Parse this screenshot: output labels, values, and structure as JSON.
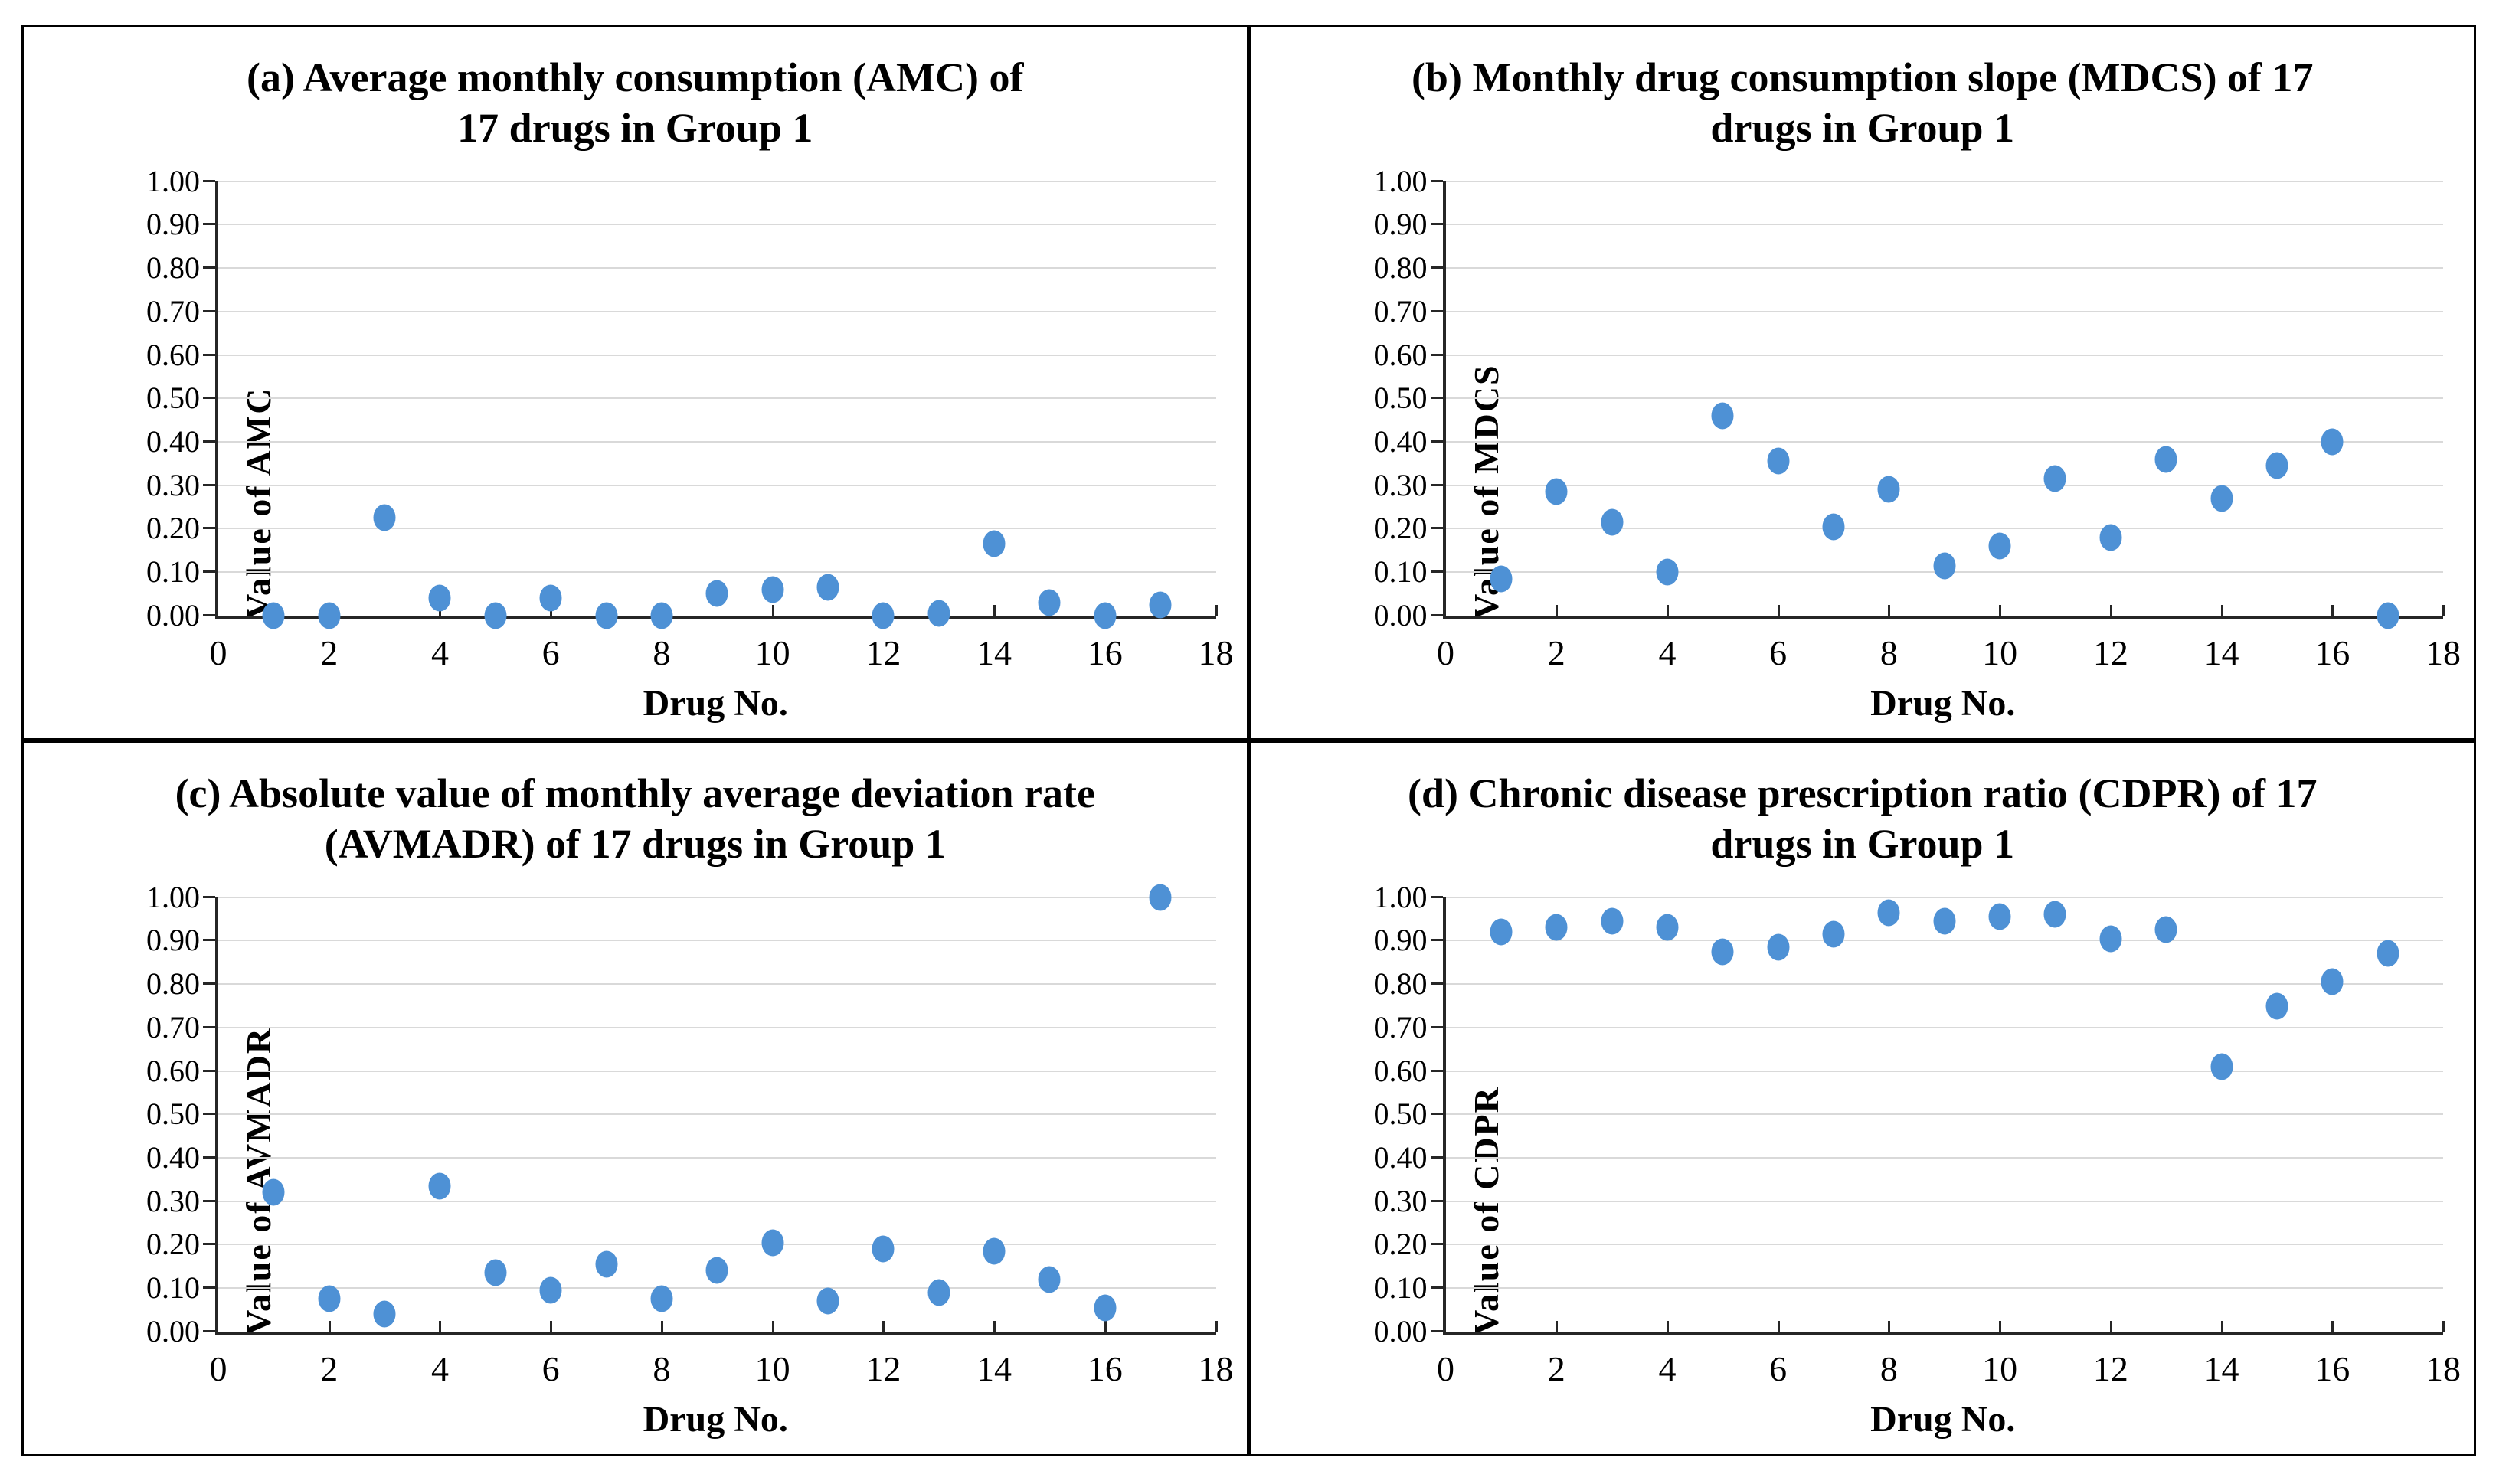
{
  "styles": {
    "marker_color": "#4e91d5",
    "gridline_color": "#d9d9d9",
    "axis_color": "#262626",
    "panel_border_color": "#000000"
  },
  "chart_data": [
    {
      "type": "scatter",
      "panel": "a",
      "title_lines": [
        "(a) Average monthly consumption (AMC) of",
        "17 drugs in Group 1"
      ],
      "ylabel": "Value of AMC",
      "xlabel": "Drug No.",
      "xlim": [
        0,
        18
      ],
      "ylim": [
        0,
        1
      ],
      "xticks": [
        "0",
        "2",
        "4",
        "6",
        "8",
        "10",
        "12",
        "14",
        "16",
        "18"
      ],
      "yticks": [
        "0.00",
        "0.10",
        "0.20",
        "0.30",
        "0.40",
        "0.50",
        "0.60",
        "0.70",
        "0.80",
        "0.90",
        "1.00"
      ],
      "grid": "horizontal",
      "legend": "none",
      "x": [
        1,
        2,
        3,
        4,
        5,
        6,
        7,
        8,
        9,
        10,
        11,
        12,
        13,
        14,
        15,
        16,
        17
      ],
      "values": [
        0.0,
        0.0,
        0.225,
        0.04,
        0.0,
        0.04,
        0.0,
        0.0,
        0.05,
        0.06,
        0.065,
        0.0,
        0.005,
        0.165,
        0.03,
        0.0,
        0.025
      ]
    },
    {
      "type": "scatter",
      "panel": "b",
      "title_lines": [
        "(b) Monthly drug consumption slope (MDCS) of 17",
        "drugs in Group 1"
      ],
      "ylabel": "Value of MDCS",
      "xlabel": "Drug No.",
      "xlim": [
        0,
        18
      ],
      "ylim": [
        0,
        1
      ],
      "xticks": [
        "0",
        "2",
        "4",
        "6",
        "8",
        "10",
        "12",
        "14",
        "16",
        "18"
      ],
      "yticks": [
        "0.00",
        "0.10",
        "0.20",
        "0.30",
        "0.40",
        "0.50",
        "0.60",
        "0.70",
        "0.80",
        "0.90",
        "1.00"
      ],
      "grid": "horizontal",
      "legend": "none",
      "x": [
        1,
        2,
        3,
        4,
        5,
        6,
        7,
        8,
        9,
        10,
        11,
        12,
        13,
        14,
        15,
        16,
        17
      ],
      "values": [
        0.085,
        0.285,
        0.215,
        0.1,
        0.46,
        0.355,
        0.205,
        0.29,
        0.115,
        0.16,
        0.315,
        0.18,
        0.36,
        0.27,
        0.345,
        0.4,
        0.0
      ]
    },
    {
      "type": "scatter",
      "panel": "c",
      "title_lines": [
        "(c) Absolute value of monthly average deviation rate",
        "(AVMADR) of 17 drugs in Group 1"
      ],
      "ylabel": "Value of AVMADR",
      "xlabel": "Drug No.",
      "xlim": [
        0,
        18
      ],
      "ylim": [
        0,
        1
      ],
      "xticks": [
        "0",
        "2",
        "4",
        "6",
        "8",
        "10",
        "12",
        "14",
        "16",
        "18"
      ],
      "yticks": [
        "0.00",
        "0.10",
        "0.20",
        "0.30",
        "0.40",
        "0.50",
        "0.60",
        "0.70",
        "0.80",
        "0.90",
        "1.00"
      ],
      "grid": "horizontal",
      "legend": "none",
      "x": [
        1,
        2,
        3,
        4,
        5,
        6,
        7,
        8,
        9,
        10,
        11,
        12,
        13,
        14,
        15,
        16,
        17
      ],
      "values": [
        0.32,
        0.075,
        0.04,
        0.335,
        0.135,
        0.095,
        0.155,
        0.075,
        0.14,
        0.205,
        0.07,
        0.19,
        0.09,
        0.185,
        0.12,
        0.055,
        1.0
      ]
    },
    {
      "type": "scatter",
      "panel": "d",
      "title_lines": [
        "(d) Chronic disease prescription ratio (CDPR) of 17",
        "drugs in Group 1"
      ],
      "ylabel": "Value of CDPR",
      "xlabel": "Drug No.",
      "xlim": [
        0,
        18
      ],
      "ylim": [
        0,
        1
      ],
      "xticks": [
        "0",
        "2",
        "4",
        "6",
        "8",
        "10",
        "12",
        "14",
        "16",
        "18"
      ],
      "yticks": [
        "0.00",
        "0.10",
        "0.20",
        "0.30",
        "0.40",
        "0.50",
        "0.60",
        "0.70",
        "0.80",
        "0.90",
        "1.00"
      ],
      "grid": "horizontal",
      "legend": "none",
      "x": [
        1,
        2,
        3,
        4,
        5,
        6,
        7,
        8,
        9,
        10,
        11,
        12,
        13,
        14,
        15,
        16,
        17
      ],
      "values": [
        0.92,
        0.93,
        0.945,
        0.93,
        0.875,
        0.885,
        0.915,
        0.965,
        0.945,
        0.955,
        0.96,
        0.905,
        0.925,
        0.61,
        0.75,
        0.805,
        0.87
      ]
    }
  ]
}
